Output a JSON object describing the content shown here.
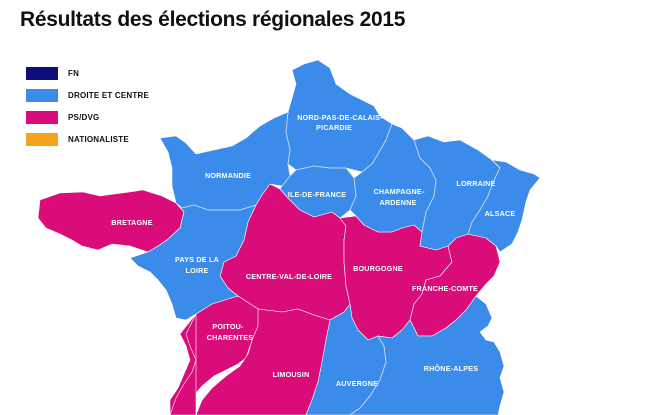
{
  "title": "Résultats des élections régionales 2015",
  "colors": {
    "fn": "#0e0e78",
    "droite": "#3b8beb",
    "ps": "#d90c79",
    "nationaliste": "#f5a31d"
  },
  "legend": [
    {
      "label": "FN",
      "color": "#0e0e78"
    },
    {
      "label": "DROITE ET CENTRE",
      "color": "#3b8beb"
    },
    {
      "label": "PS/DVG",
      "color": "#d90c79"
    },
    {
      "label": "NATIONALISTE",
      "color": "#f5a31d"
    }
  ],
  "regions": {
    "nord": {
      "line1": "NORD-PAS-DE-CALAIS-",
      "line2": "PICARDIE",
      "winner": "DROITE ET CENTRE"
    },
    "normandie": {
      "line1": "NORMANDIE",
      "winner": "DROITE ET CENTRE"
    },
    "idf": {
      "line1": "ILE-DE-FRANCE",
      "winner": "DROITE ET CENTRE"
    },
    "champagne": {
      "line1": "CHAMPAGNE-",
      "line2": "ARDENNE",
      "winner": "DROITE ET CENTRE"
    },
    "lorraine": {
      "line1": "LORRAINE",
      "winner": "DROITE ET CENTRE"
    },
    "alsace": {
      "line1": "ALSACE",
      "winner": "DROITE ET CENTRE"
    },
    "bretagne": {
      "line1": "BRETAGNE",
      "winner": "PS/DVG"
    },
    "pdl": {
      "line1": "PAYS DE LA",
      "line2": "LOIRE",
      "winner": "DROITE ET CENTRE"
    },
    "centre": {
      "line1": "CENTRE-VAL-DE-LOIRE",
      "winner": "PS/DVG"
    },
    "bourgogne": {
      "line1": "BOURGOGNE",
      "winner": "PS/DVG"
    },
    "franche": {
      "line1": "FRANCHE-COMTE",
      "winner": "PS/DVG"
    },
    "poitou": {
      "line1": "POITOU-",
      "line2": "CHARENTES",
      "winner": "PS/DVG"
    },
    "limousin": {
      "line1": "LIMOUSIN",
      "winner": "PS/DVG"
    },
    "auvergne": {
      "line1": "AUVERGNE",
      "winner": "DROITE ET CENTRE"
    },
    "rhone": {
      "line1": "RHÔNE-ALPES",
      "winner": "DROITE ET CENTRE"
    }
  }
}
